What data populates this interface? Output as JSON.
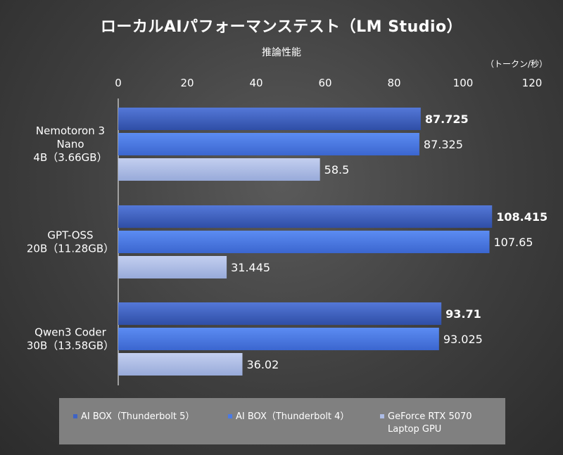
{
  "chart_data": {
    "type": "bar",
    "orientation": "horizontal",
    "title": "ローカルAIパフォーマンステスト（LM Studio）",
    "subtitle": "推論性能",
    "unit": "（トークン/秒）",
    "xlim": [
      0,
      120
    ],
    "xticks": [
      "0",
      "20",
      "40",
      "60",
      "80",
      "100",
      "120"
    ],
    "categories": [
      [
        "Nemotoron 3",
        "Nano",
        "4B（3.66GB）"
      ],
      [
        "GPT-OSS",
        "20B（11.28GB）"
      ],
      [
        "Qwen3 Coder",
        "30B（13.58GB）"
      ]
    ],
    "series": [
      {
        "name": "AI BOX（Thunderbolt 5）",
        "values": [
          87.725,
          108.415,
          93.71
        ],
        "labels": [
          "87.725",
          "108.415",
          "93.71"
        ],
        "color": "#3f63c4",
        "bold": true
      },
      {
        "name": "AI BOX（Thunderbolt 4）",
        "values": [
          87.325,
          107.65,
          93.025
        ],
        "labels": [
          "87.325",
          "107.65",
          "93.025"
        ],
        "color": "#4a7ae6",
        "bold": false
      },
      {
        "name": "GeForce RTX 5070 Laptop GPU",
        "values": [
          58.5,
          31.445,
          36.02
        ],
        "labels": [
          "58.5",
          "31.445",
          "36.02"
        ],
        "color": "#aebde6",
        "bold": false
      }
    ],
    "legend": [
      [
        "AI BOX（Thunderbolt 5）"
      ],
      [
        "AI BOX（Thunderbolt 4）"
      ],
      [
        "GeForce RTX 5070",
        "Laptop GPU"
      ]
    ],
    "legend_position": "bottom",
    "grid": false
  }
}
